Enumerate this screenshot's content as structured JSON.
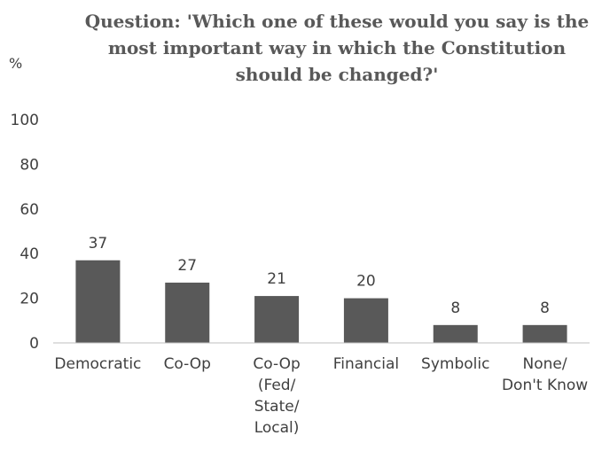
{
  "chart_data": {
    "type": "bar",
    "title_lines": [
      "Question: 'Which one of these would you say is the",
      "most important way in which the Constitution",
      "should be changed?'"
    ],
    "ylabel": "%",
    "ylim": [
      0,
      100
    ],
    "yticks": [
      0,
      20,
      40,
      60,
      80,
      100
    ],
    "grid": false,
    "categories": [
      [
        "Democratic"
      ],
      [
        "Co-Op"
      ],
      [
        "Co-Op",
        "(Fed/",
        "State/",
        "Local)"
      ],
      [
        "Financial"
      ],
      [
        "Symbolic"
      ],
      [
        "None/",
        "Don't Know"
      ]
    ],
    "values": [
      37,
      27,
      21,
      20,
      8,
      8
    ],
    "bar_color": "#595959"
  }
}
